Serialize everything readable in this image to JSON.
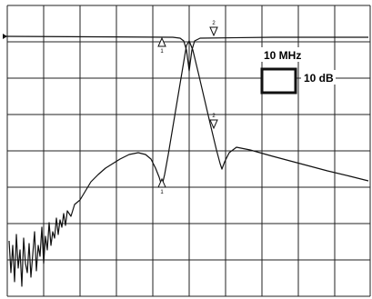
{
  "scale": {
    "frequency": "10 MHz",
    "amplitude": "10 dB"
  },
  "markers": [
    {
      "label": "1"
    },
    {
      "label": "2"
    },
    {
      "label": "1"
    },
    {
      "label": "2"
    }
  ]
}
